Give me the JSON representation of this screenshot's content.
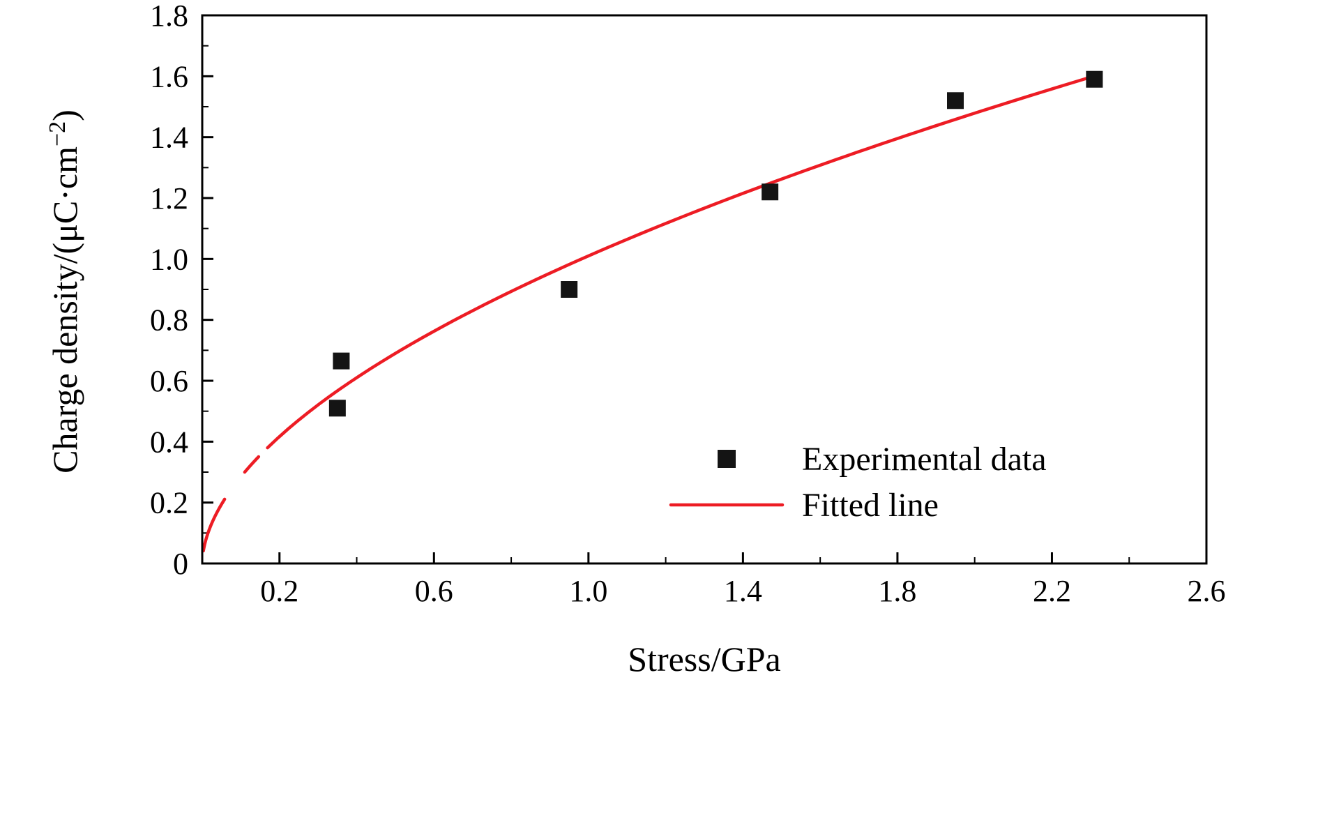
{
  "figure": {
    "background": "#ffffff",
    "axes_color": "#000000",
    "axes_line_width": 3
  },
  "chart_data": {
    "type": "scatter",
    "title": "",
    "xlabel": "Stress/GPa",
    "ylabel": "Charge density/(μC·cm⁻²)",
    "ylabel_rich": {
      "pre": "Charge density/(μC·cm",
      "sup": "−2",
      "post": ")"
    },
    "xlim": [
      0,
      2.6
    ],
    "ylim": [
      0,
      1.8
    ],
    "grid": false,
    "x_ticks": [
      {
        "v": 0.2,
        "label": "0.2"
      },
      {
        "v": 0.6,
        "label": "0.6"
      },
      {
        "v": 1.0,
        "label": "1.0"
      },
      {
        "v": 1.4,
        "label": "1.4"
      },
      {
        "v": 1.8,
        "label": "1.8"
      },
      {
        "v": 2.2,
        "label": "2.2"
      },
      {
        "v": 2.6,
        "label": "2.6"
      }
    ],
    "x_minor_ticks": [
      0.4,
      0.8,
      1.2,
      1.6,
      2.0,
      2.4
    ],
    "y_ticks": [
      {
        "v": 0.0,
        "label": "0"
      },
      {
        "v": 0.2,
        "label": "0.2"
      },
      {
        "v": 0.4,
        "label": "0.4"
      },
      {
        "v": 0.6,
        "label": "0.6"
      },
      {
        "v": 0.8,
        "label": "0.8"
      },
      {
        "v": 1.0,
        "label": "1.0"
      },
      {
        "v": 1.2,
        "label": "1.2"
      },
      {
        "v": 1.4,
        "label": "1.4"
      },
      {
        "v": 1.6,
        "label": "1.6"
      },
      {
        "v": 1.8,
        "label": "1.8"
      }
    ],
    "y_minor_ticks": [
      0.1,
      0.3,
      0.5,
      0.7,
      0.9,
      1.1,
      1.3,
      1.5,
      1.7
    ],
    "series": [
      {
        "name": "Experimental data",
        "type": "scatter",
        "marker": "square",
        "color": "#141414",
        "points": [
          [
            0.35,
            0.51
          ],
          [
            0.36,
            0.665
          ],
          [
            0.95,
            0.9
          ],
          [
            1.47,
            1.22
          ],
          [
            1.95,
            1.52
          ],
          [
            2.31,
            1.59
          ]
        ]
      },
      {
        "name": "Fitted line",
        "type": "line",
        "color": "#ed1c24",
        "line_width": 4.5,
        "fit": {
          "form": "power",
          "a": 1.01,
          "b": 0.55
        },
        "x_segments": [
          [
            0.003,
            0.058
          ],
          [
            0.11,
            0.146
          ],
          [
            0.169,
            2.31
          ]
        ]
      }
    ],
    "legend": {
      "position": "inside right-center",
      "entries": [
        "Experimental data",
        "Fitted line"
      ]
    }
  }
}
